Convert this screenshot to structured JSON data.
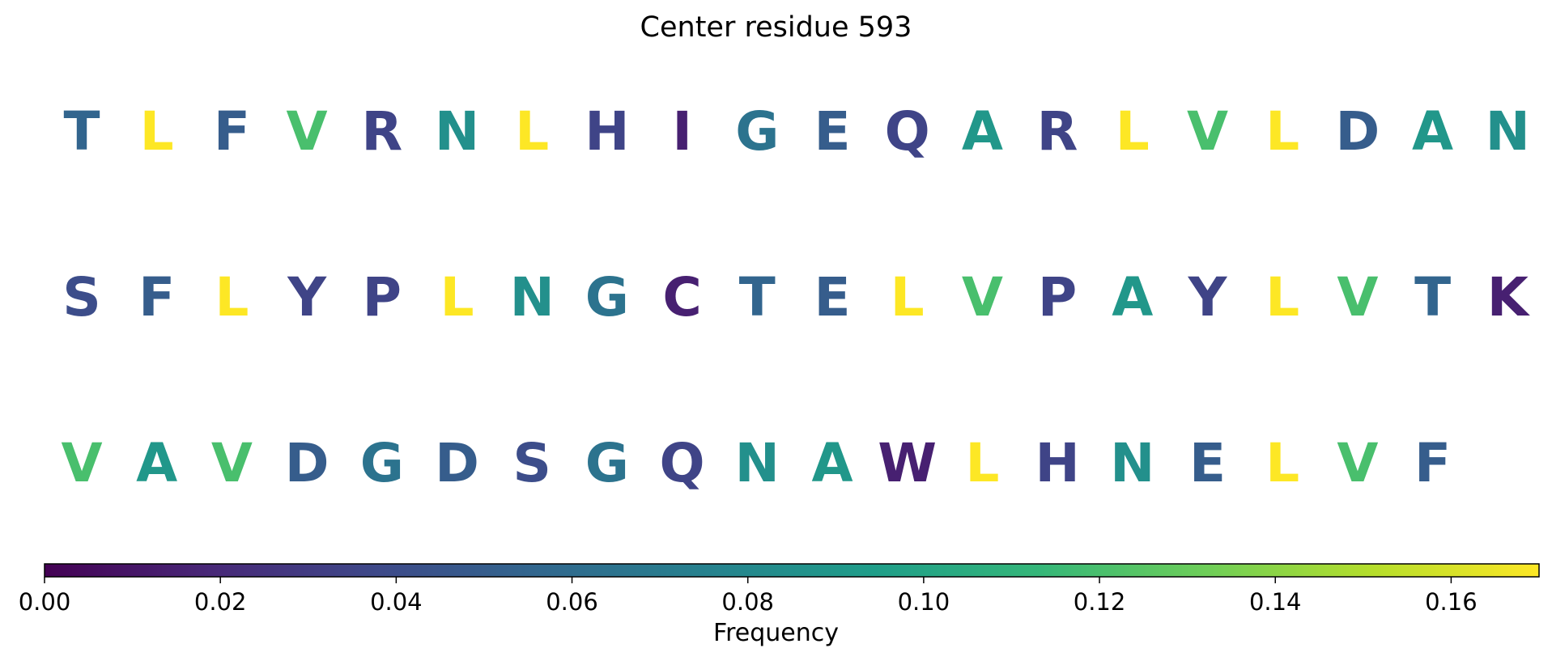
{
  "chart_data": {
    "type": "heatmap",
    "title": "Center residue 593",
    "rows": [
      {
        "residues": [
          "T",
          "L",
          "F",
          "V",
          "R",
          "N",
          "L",
          "H",
          "I",
          "G",
          "E",
          "Q",
          "A",
          "R",
          "L",
          "V",
          "L",
          "D",
          "A",
          "N"
        ],
        "values": [
          0.055,
          0.17,
          0.05,
          0.12,
          0.035,
          0.085,
          0.17,
          0.035,
          0.015,
          0.065,
          0.05,
          0.035,
          0.09,
          0.035,
          0.17,
          0.12,
          0.17,
          0.05,
          0.09,
          0.085
        ]
      },
      {
        "residues": [
          "S",
          "F",
          "L",
          "Y",
          "P",
          "L",
          "N",
          "G",
          "C",
          "T",
          "E",
          "L",
          "V",
          "P",
          "A",
          "Y",
          "L",
          "V",
          "T",
          "K"
        ],
        "values": [
          0.04,
          0.05,
          0.17,
          0.035,
          0.035,
          0.17,
          0.085,
          0.065,
          0.015,
          0.055,
          0.05,
          0.17,
          0.12,
          0.035,
          0.09,
          0.035,
          0.17,
          0.12,
          0.055,
          0.015
        ]
      },
      {
        "residues": [
          "V",
          "A",
          "V",
          "D",
          "G",
          "D",
          "S",
          "G",
          "Q",
          "N",
          "A",
          "W",
          "L",
          "H",
          "N",
          "E",
          "L",
          "V",
          "F"
        ],
        "values": [
          0.12,
          0.09,
          0.12,
          0.05,
          0.065,
          0.05,
          0.04,
          0.065,
          0.035,
          0.085,
          0.09,
          0.015,
          0.17,
          0.035,
          0.085,
          0.05,
          0.17,
          0.12,
          0.05
        ]
      }
    ],
    "colorbar": {
      "label": "Frequency",
      "range": [
        0,
        0.17
      ],
      "ticks": [
        0.0,
        0.02,
        0.04,
        0.06,
        0.08,
        0.1,
        0.12,
        0.14,
        0.16
      ],
      "tick_labels": [
        "0.00",
        "0.02",
        "0.04",
        "0.06",
        "0.08",
        "0.10",
        "0.12",
        "0.14",
        "0.16"
      ],
      "colormap": "viridis",
      "orientation": "horizontal",
      "placement": "bottom"
    },
    "colormap_stops": [
      "#440154",
      "#482878",
      "#3e4989",
      "#31688e",
      "#26828e",
      "#1f9e89",
      "#35b779",
      "#6ece58",
      "#b5de2b",
      "#fde725"
    ]
  }
}
